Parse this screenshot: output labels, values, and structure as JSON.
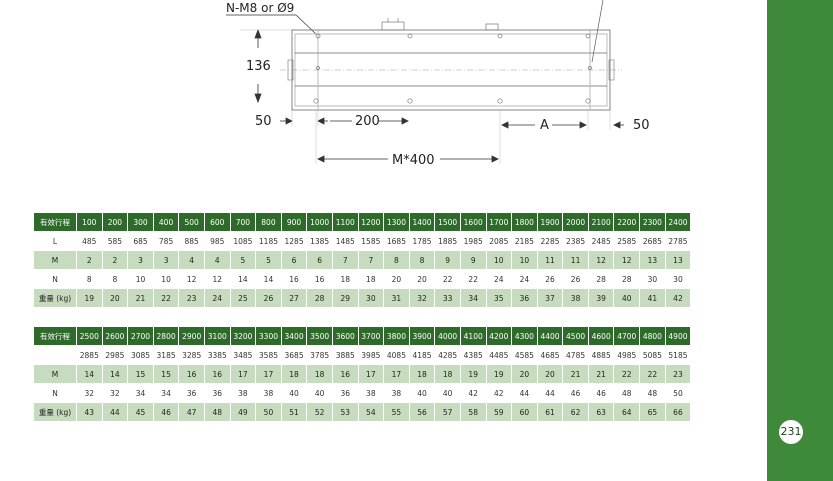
{
  "drawing": {
    "callout": "N-M8 or Ø9",
    "height": "136",
    "left_edge": "50",
    "pitch": "200",
    "span": "M*400",
    "a_label": "A",
    "right_edge": "50"
  },
  "table1": {
    "rows": [
      {
        "label": "有效行程",
        "style": "hdr",
        "values": [
          "100",
          "200",
          "300",
          "400",
          "500",
          "600",
          "700",
          "800",
          "900",
          "1000",
          "1100",
          "1200",
          "1300",
          "1400",
          "1500",
          "1600",
          "1700",
          "1800",
          "1900",
          "2000",
          "2100",
          "2200",
          "2300",
          "2400"
        ]
      },
      {
        "label": "L",
        "style": "light",
        "values": [
          "485",
          "585",
          "685",
          "785",
          "885",
          "985",
          "1085",
          "1185",
          "1285",
          "1385",
          "1485",
          "1585",
          "1685",
          "1785",
          "1885",
          "1985",
          "2085",
          "2185",
          "2285",
          "2385",
          "2485",
          "2585",
          "2685",
          "2785"
        ]
      },
      {
        "label": "M",
        "style": "shade",
        "values": [
          "2",
          "2",
          "3",
          "3",
          "4",
          "4",
          "5",
          "5",
          "6",
          "6",
          "7",
          "7",
          "8",
          "8",
          "9",
          "9",
          "10",
          "10",
          "11",
          "11",
          "12",
          "12",
          "13",
          "13"
        ]
      },
      {
        "label": "N",
        "style": "light",
        "values": [
          "8",
          "8",
          "10",
          "10",
          "12",
          "12",
          "14",
          "14",
          "16",
          "16",
          "18",
          "18",
          "20",
          "20",
          "22",
          "22",
          "24",
          "24",
          "26",
          "26",
          "28",
          "28",
          "30",
          "30"
        ]
      },
      {
        "label": "重量 (kg)",
        "style": "shade",
        "values": [
          "19",
          "20",
          "21",
          "22",
          "23",
          "24",
          "25",
          "26",
          "27",
          "28",
          "29",
          "30",
          "31",
          "32",
          "33",
          "34",
          "35",
          "36",
          "37",
          "38",
          "39",
          "40",
          "41",
          "42"
        ]
      }
    ]
  },
  "table2": {
    "rows": [
      {
        "label": "有效行程",
        "style": "hdr",
        "values": [
          "2500",
          "2600",
          "2700",
          "2800",
          "2900",
          "3100",
          "3200",
          "3300",
          "3400",
          "3500",
          "3600",
          "3700",
          "3800",
          "3900",
          "4000",
          "4100",
          "4200",
          "4300",
          "4400",
          "4500",
          "4600",
          "4700",
          "4800",
          "4900"
        ]
      },
      {
        "label": "",
        "style": "light",
        "values": [
          "2885",
          "2985",
          "3085",
          "3185",
          "3285",
          "3385",
          "3485",
          "3585",
          "3685",
          "3785",
          "3885",
          "3985",
          "4085",
          "4185",
          "4285",
          "4385",
          "4485",
          "4585",
          "4685",
          "4785",
          "4885",
          "4985",
          "5085",
          "5185"
        ]
      },
      {
        "label": "M",
        "style": "shade",
        "values": [
          "14",
          "14",
          "15",
          "15",
          "16",
          "16",
          "17",
          "17",
          "18",
          "18",
          "16",
          "17",
          "17",
          "18",
          "18",
          "19",
          "19",
          "20",
          "20",
          "21",
          "21",
          "22",
          "22",
          "23"
        ]
      },
      {
        "label": "N",
        "style": "light",
        "values": [
          "32",
          "32",
          "34",
          "34",
          "36",
          "36",
          "38",
          "38",
          "40",
          "40",
          "36",
          "38",
          "38",
          "40",
          "40",
          "42",
          "42",
          "44",
          "44",
          "46",
          "46",
          "48",
          "48",
          "50"
        ]
      },
      {
        "label": "重量 (kg)",
        "style": "shade",
        "values": [
          "43",
          "44",
          "45",
          "46",
          "47",
          "48",
          "49",
          "50",
          "51",
          "52",
          "53",
          "54",
          "55",
          "56",
          "57",
          "58",
          "59",
          "60",
          "61",
          "62",
          "63",
          "64",
          "65",
          "66"
        ]
      }
    ]
  },
  "page_number": "231"
}
